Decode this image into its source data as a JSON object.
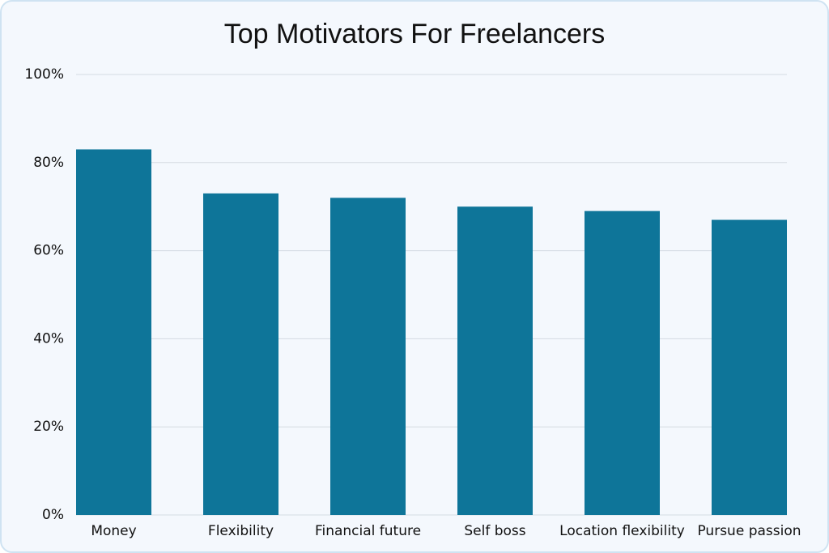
{
  "chart_data": {
    "type": "bar",
    "title": "Top Motivators For Freelancers",
    "categories": [
      "Money",
      "Flexibility",
      "Financial future",
      "Self boss",
      "Location flexibility",
      "Pursue passion"
    ],
    "values": [
      83,
      73,
      72,
      70,
      69,
      67
    ],
    "color": "#0e7599",
    "ylim": [
      0,
      100
    ],
    "yticks": [
      {
        "value": 0,
        "label": "0%"
      },
      {
        "value": 20,
        "label": "20%"
      },
      {
        "value": 40,
        "label": "40%"
      },
      {
        "value": 60,
        "label": "60%"
      },
      {
        "value": 80,
        "label": "80%"
      },
      {
        "value": 100,
        "label": "100%"
      }
    ],
    "grid": true
  }
}
